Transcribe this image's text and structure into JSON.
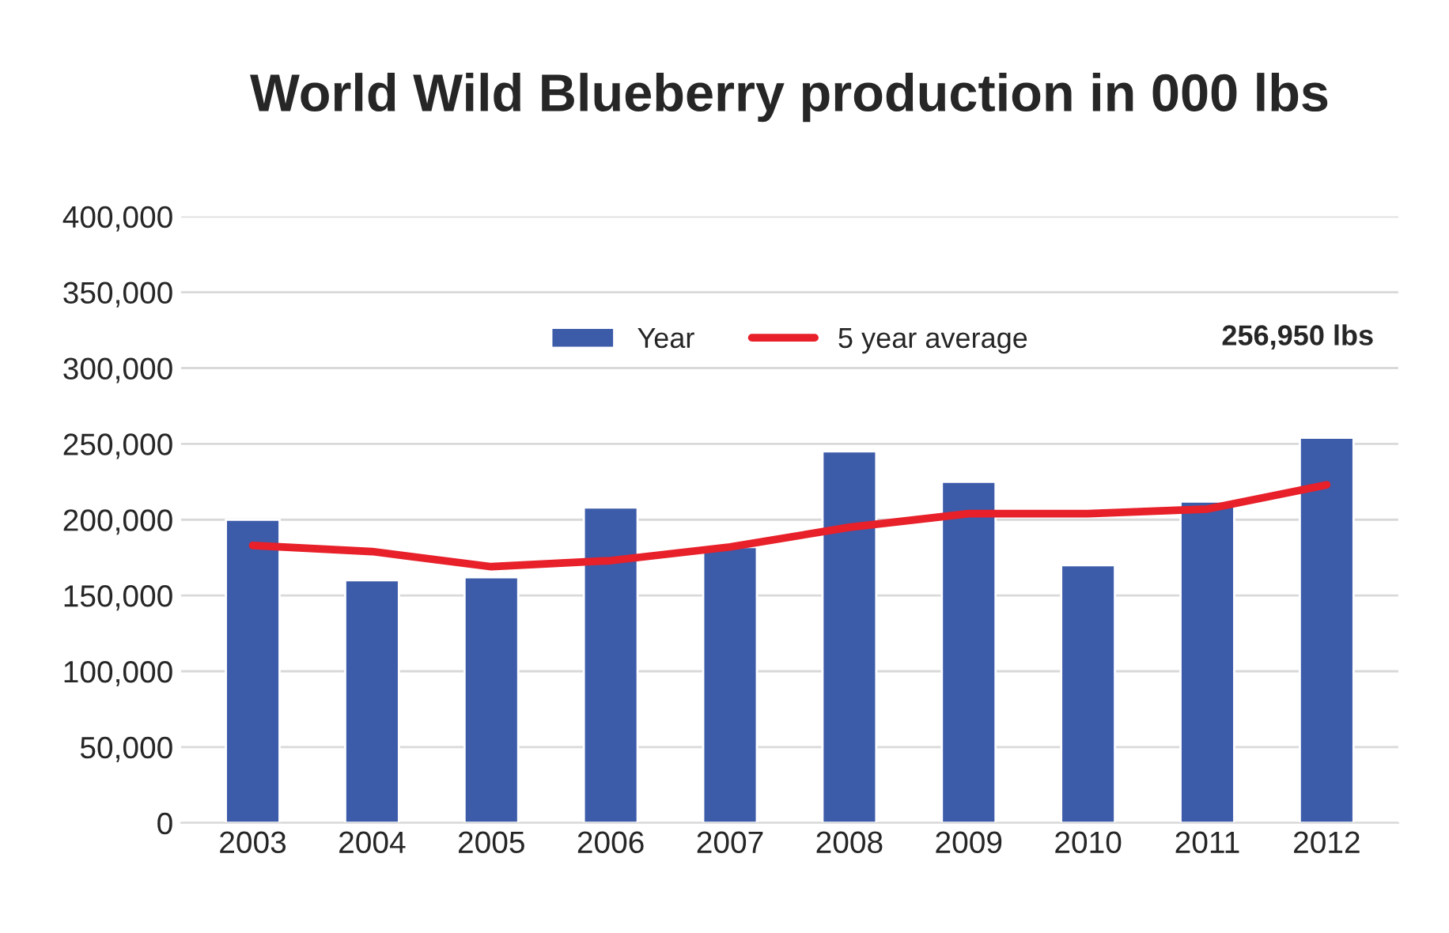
{
  "chart_data": {
    "type": "bar",
    "title": "World Wild Blueberry production in 000 lbs",
    "categories": [
      "2003",
      "2004",
      "2005",
      "2006",
      "2007",
      "2008",
      "2009",
      "2010",
      "2011",
      "2012"
    ],
    "series": [
      {
        "name": "Year",
        "color": "#3c5ba9",
        "values": [
          200000,
          160000,
          162000,
          208000,
          182000,
          245000,
          225000,
          170000,
          212000,
          254000
        ]
      },
      {
        "name": "5 year average",
        "type": "line",
        "color": "#e8202a",
        "values": [
          183000,
          179000,
          169000,
          173000,
          182000,
          195000,
          204000,
          204000,
          207000,
          223000
        ]
      }
    ],
    "ylim": [
      0,
      400000
    ],
    "yticks": [
      {
        "value": 0,
        "label": "0"
      },
      {
        "value": 50000,
        "label": "50,000"
      },
      {
        "value": 100000,
        "label": "100,000"
      },
      {
        "value": 150000,
        "label": "150,000"
      },
      {
        "value": 200000,
        "label": "200,000"
      },
      {
        "value": 250000,
        "label": "250,000"
      },
      {
        "value": 300000,
        "label": "300,000"
      },
      {
        "value": 350000,
        "label": "350,000"
      },
      {
        "value": 400000,
        "label": "400,000"
      }
    ],
    "grid": "y",
    "legend": "top",
    "marker": "none",
    "line_style": "solid",
    "annotations": [
      "256,950 lbs"
    ]
  }
}
